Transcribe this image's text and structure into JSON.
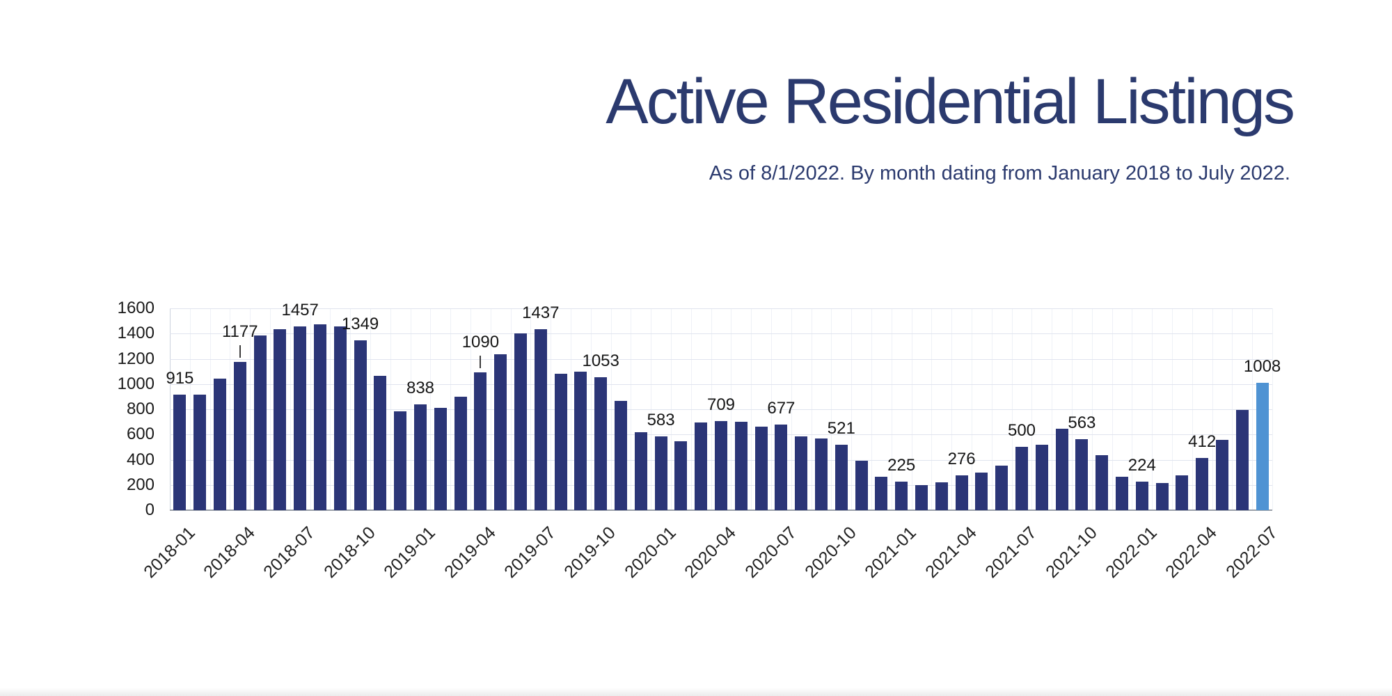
{
  "title": "Active Residential Listings",
  "subtitle": "As of 8/1/2022. By month dating from January 2018 to July 2022.",
  "colors": {
    "bar": "#2b3577",
    "highlight_bar": "#4f93d3",
    "heading_text": "#2b3a6e",
    "gridline": "#e0e4ee",
    "axis_line": "#9aa0a8",
    "label_text": "#1a1a1a"
  },
  "chart_data": {
    "type": "bar",
    "title": "Active Residential Listings",
    "subtitle": "As of 8/1/2022. By month dating from January 2018 to July 2022.",
    "xlabel": "",
    "ylabel": "",
    "ylim": [
      0,
      1600
    ],
    "y_ticks": [
      0,
      200,
      400,
      600,
      800,
      1000,
      1200,
      1400,
      1600
    ],
    "grid": "horizontal light + faint vertical category gridlines",
    "legend": "none",
    "label_interval": 3,
    "leader_label_categories": [
      "2018-04",
      "2019-04"
    ],
    "highlight_category": "2022-07",
    "x_tick_labels": [
      "2018-01",
      "2018-04",
      "2018-07",
      "2018-10",
      "2019-01",
      "2019-04",
      "2019-07",
      "2019-10",
      "2020-01",
      "2020-04",
      "2020-07",
      "2020-10",
      "2021-01",
      "2021-04",
      "2021-07",
      "2021-10",
      "2022-01",
      "2022-04",
      "2022-07"
    ],
    "data_labels": [
      915,
      1177,
      1457,
      1349,
      838,
      1090,
      1437,
      1053,
      583,
      709,
      677,
      521,
      225,
      276,
      500,
      563,
      224,
      412,
      1008
    ],
    "categories": [
      "2018-01",
      "2018-02",
      "2018-03",
      "2018-04",
      "2018-05",
      "2018-06",
      "2018-07",
      "2018-08",
      "2018-09",
      "2018-10",
      "2018-11",
      "2018-12",
      "2019-01",
      "2019-02",
      "2019-03",
      "2019-04",
      "2019-05",
      "2019-06",
      "2019-07",
      "2019-08",
      "2019-09",
      "2019-10",
      "2019-11",
      "2019-12",
      "2020-01",
      "2020-02",
      "2020-03",
      "2020-04",
      "2020-05",
      "2020-06",
      "2020-07",
      "2020-08",
      "2020-09",
      "2020-10",
      "2020-11",
      "2020-12",
      "2021-01",
      "2021-02",
      "2021-03",
      "2021-04",
      "2021-05",
      "2021-06",
      "2021-07",
      "2021-08",
      "2021-09",
      "2021-10",
      "2021-11",
      "2021-12",
      "2022-01",
      "2022-02",
      "2022-03",
      "2022-04",
      "2022-05",
      "2022-06",
      "2022-07"
    ],
    "values": [
      915,
      915,
      1045,
      1177,
      1385,
      1435,
      1457,
      1475,
      1455,
      1349,
      1065,
      785,
      838,
      810,
      900,
      1090,
      1235,
      1400,
      1437,
      1080,
      1100,
      1053,
      865,
      620,
      583,
      545,
      695,
      709,
      700,
      660,
      677,
      585,
      570,
      521,
      390,
      265,
      225,
      200,
      222,
      276,
      300,
      352,
      500,
      520,
      645,
      563,
      435,
      265,
      224,
      218,
      275,
      412,
      555,
      795,
      1008
    ]
  }
}
